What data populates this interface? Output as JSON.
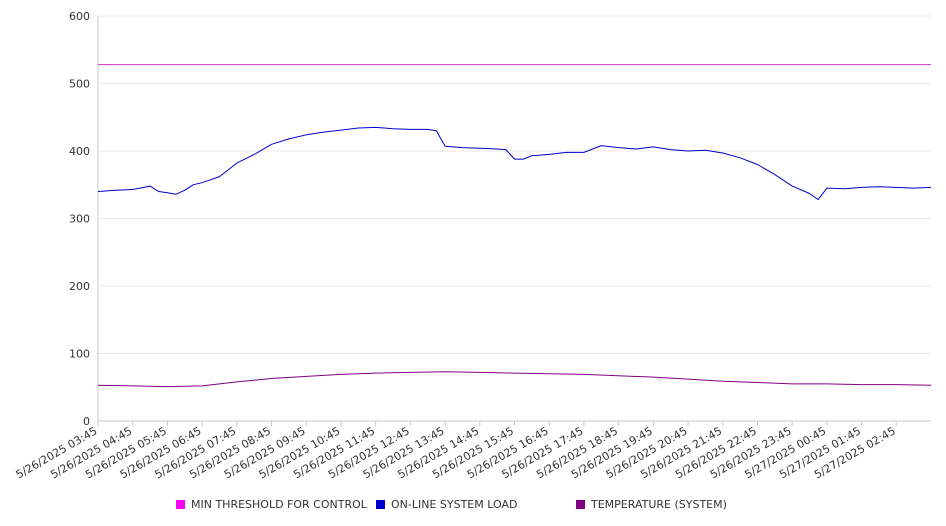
{
  "chart_data": {
    "type": "line",
    "ylim": [
      0,
      600
    ],
    "yticks": [
      0,
      100,
      200,
      300,
      400,
      500,
      600
    ],
    "x_tick_labels": [
      "5/26/2025 03:45",
      "5/26/2025 04:45",
      "5/26/2025 05:45",
      "5/26/2025 06:45",
      "5/26/2025 07:45",
      "5/26/2025 08:45",
      "5/26/2025 09:45",
      "5/26/2025 10:45",
      "5/26/2025 11:45",
      "5/26/2025 12:45",
      "5/26/2025 13:45",
      "5/26/2025 14:45",
      "5/26/2025 15:45",
      "5/26/2025 16:45",
      "5/26/2025 17:45",
      "5/26/2025 18:45",
      "5/26/2025 19:45",
      "5/26/2025 20:45",
      "5/26/2025 21:45",
      "5/26/2025 22:45",
      "5/26/2025 23:45",
      "5/27/2025 00:45",
      "5/27/2025 01:45",
      "5/27/2025 02:45"
    ],
    "grid": true,
    "legend_position": "bottom",
    "series": [
      {
        "name": "MIN THRESHOLD FOR CONTROL",
        "color": "#cc33cc",
        "points": [
          [
            "5/26/2025 03:45",
            528
          ],
          [
            "5/27/2025 03:45",
            528
          ]
        ]
      },
      {
        "name": "ON-LINE SYSTEM LOAD",
        "color": "#0000cc",
        "points": [
          [
            "5/26/2025 03:45",
            340
          ],
          [
            "5/26/2025 04:15",
            342
          ],
          [
            "5/26/2025 04:45",
            343
          ],
          [
            "5/26/2025 05:15",
            348
          ],
          [
            "5/26/2025 05:30",
            340
          ],
          [
            "5/26/2025 05:45",
            338
          ],
          [
            "5/26/2025 06:00",
            336
          ],
          [
            "5/26/2025 06:15",
            342
          ],
          [
            "5/26/2025 06:30",
            350
          ],
          [
            "5/26/2025 06:45",
            353
          ],
          [
            "5/26/2025 07:15",
            362
          ],
          [
            "5/26/2025 07:30",
            372
          ],
          [
            "5/26/2025 07:45",
            382
          ],
          [
            "5/26/2025 08:15",
            395
          ],
          [
            "5/26/2025 08:45",
            410
          ],
          [
            "5/26/2025 09:15",
            418
          ],
          [
            "5/26/2025 09:45",
            424
          ],
          [
            "5/26/2025 10:15",
            428
          ],
          [
            "5/26/2025 10:45",
            431
          ],
          [
            "5/26/2025 11:15",
            434
          ],
          [
            "5/26/2025 11:45",
            435
          ],
          [
            "5/26/2025 12:15",
            433
          ],
          [
            "5/26/2025 12:45",
            432
          ],
          [
            "5/26/2025 13:15",
            432
          ],
          [
            "5/26/2025 13:30",
            430
          ],
          [
            "5/26/2025 13:45",
            407
          ],
          [
            "5/26/2025 14:15",
            405
          ],
          [
            "5/26/2025 14:45",
            404
          ],
          [
            "5/26/2025 15:15",
            403
          ],
          [
            "5/26/2025 15:30",
            402
          ],
          [
            "5/26/2025 15:45",
            388
          ],
          [
            "5/26/2025 16:00",
            388
          ],
          [
            "5/26/2025 16:15",
            393
          ],
          [
            "5/26/2025 16:45",
            395
          ],
          [
            "5/26/2025 17:15",
            398
          ],
          [
            "5/26/2025 17:45",
            398
          ],
          [
            "5/26/2025 18:15",
            408
          ],
          [
            "5/26/2025 18:45",
            405
          ],
          [
            "5/26/2025 19:15",
            403
          ],
          [
            "5/26/2025 19:45",
            406
          ],
          [
            "5/26/2025 20:15",
            402
          ],
          [
            "5/26/2025 20:45",
            400
          ],
          [
            "5/26/2025 21:15",
            401
          ],
          [
            "5/26/2025 21:45",
            397
          ],
          [
            "5/26/2025 22:15",
            390
          ],
          [
            "5/26/2025 22:45",
            380
          ],
          [
            "5/26/2025 23:15",
            365
          ],
          [
            "5/26/2025 23:45",
            348
          ],
          [
            "5/27/2025 00:15",
            337
          ],
          [
            "5/27/2025 00:30",
            328
          ],
          [
            "5/27/2025 00:45",
            345
          ],
          [
            "5/27/2025 01:15",
            344
          ],
          [
            "5/27/2025 01:45",
            346
          ],
          [
            "5/27/2025 02:15",
            347
          ],
          [
            "5/27/2025 02:45",
            346
          ],
          [
            "5/27/2025 03:15",
            345
          ],
          [
            "5/27/2025 03:45",
            346
          ]
        ]
      },
      {
        "name": "TEMPERATURE (SYSTEM)",
        "color": "#800080",
        "points": [
          [
            "5/26/2025 03:45",
            53
          ],
          [
            "5/26/2025 04:45",
            52
          ],
          [
            "5/26/2025 05:45",
            51
          ],
          [
            "5/26/2025 06:45",
            52
          ],
          [
            "5/26/2025 07:45",
            58
          ],
          [
            "5/26/2025 08:45",
            63
          ],
          [
            "5/26/2025 09:45",
            66
          ],
          [
            "5/26/2025 10:45",
            69
          ],
          [
            "5/26/2025 11:45",
            71
          ],
          [
            "5/26/2025 12:45",
            72
          ],
          [
            "5/26/2025 13:45",
            73
          ],
          [
            "5/26/2025 14:45",
            72
          ],
          [
            "5/26/2025 15:45",
            71
          ],
          [
            "5/26/2025 16:45",
            70
          ],
          [
            "5/26/2025 17:45",
            69
          ],
          [
            "5/26/2025 18:45",
            67
          ],
          [
            "5/26/2025 19:45",
            65
          ],
          [
            "5/26/2025 20:45",
            62
          ],
          [
            "5/26/2025 21:45",
            59
          ],
          [
            "5/26/2025 22:45",
            57
          ],
          [
            "5/26/2025 23:45",
            55
          ],
          [
            "5/27/2025 00:45",
            55
          ],
          [
            "5/27/2025 01:45",
            54
          ],
          [
            "5/27/2025 02:45",
            54
          ],
          [
            "5/27/2025 03:45",
            53
          ]
        ]
      }
    ]
  }
}
